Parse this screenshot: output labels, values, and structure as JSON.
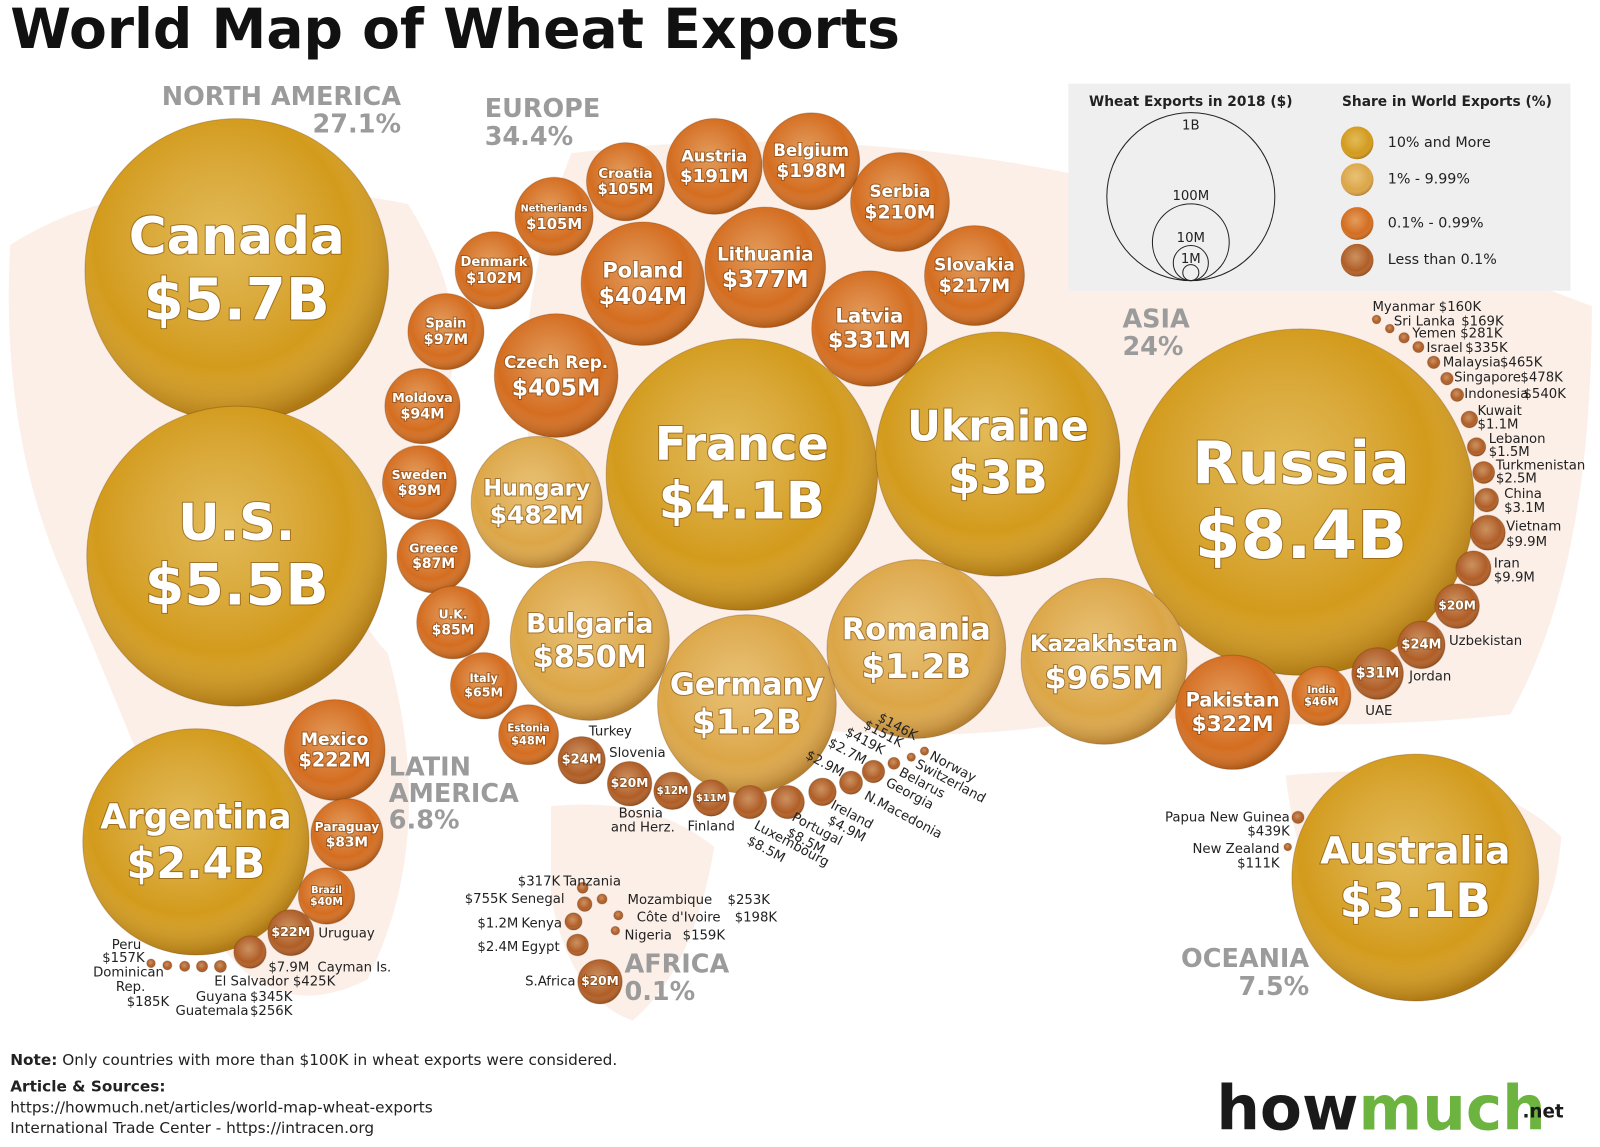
{
  "title": "World Map of Wheat Exports",
  "regions": [
    {
      "name": "NORTH AMERICA",
      "share": "27.1%"
    },
    {
      "name": "EUROPE",
      "share": "34.4%"
    },
    {
      "name": "ASIA",
      "share": "24%"
    },
    {
      "name": "LATIN AMERICA",
      "share": "6.8%"
    },
    {
      "name": "AFRICA",
      "share": "0.1%"
    },
    {
      "name": "OCEANIA",
      "share": "7.5%"
    }
  ],
  "countries": [
    {
      "name": "Canada",
      "value": 5700000000,
      "label": "$5.7B",
      "color": "#d39b1c"
    },
    {
      "name": "U.S.",
      "value": 5500000000,
      "label": "$5.5B",
      "color": "#d39b1c"
    },
    {
      "name": "Mexico",
      "value": 222000000,
      "label": "$222M",
      "color": "#d46d1f"
    },
    {
      "name": "Argentina",
      "value": 2400000000,
      "label": "$2.4B",
      "color": "#d39b1c"
    },
    {
      "name": "Paraguay",
      "value": 83000000,
      "label": "$83M",
      "color": "#d46d1f"
    },
    {
      "name": "Brazil",
      "value": 40000000,
      "label": "$40M",
      "color": "#d46d1f"
    },
    {
      "name": "Uruguay",
      "value": 22000000,
      "label": "$22M",
      "color": "#b05d25"
    },
    {
      "name": "Cayman Is.",
      "value": 7900000,
      "label": "$7.9M",
      "color": "#b05d25"
    },
    {
      "name": "El Salvador",
      "value": 425000,
      "label": "$425K",
      "color": "#b05d25"
    },
    {
      "name": "Guyana",
      "value": 345000,
      "label": "$345K",
      "color": "#b05d25"
    },
    {
      "name": "Guatemala",
      "value": 256000,
      "label": "$256K",
      "color": "#b05d25"
    },
    {
      "name": "Dominican Rep.",
      "value": 185000,
      "label": "$185K",
      "color": "#b05d25"
    },
    {
      "name": "Peru",
      "value": 157000,
      "label": "$157K",
      "color": "#b05d25"
    },
    {
      "name": "France",
      "value": 4100000000,
      "label": "$4.1B",
      "color": "#d39b1c"
    },
    {
      "name": "Germany",
      "value": 1200000000,
      "label": "$1.2B",
      "color": "#dca646"
    },
    {
      "name": "Romania",
      "value": 1200000000,
      "label": "$1.2B",
      "color": "#dca646"
    },
    {
      "name": "Bulgaria",
      "value": 850000000,
      "label": "$850M",
      "color": "#dca646"
    },
    {
      "name": "Hungary",
      "value": 482000000,
      "label": "$482M",
      "color": "#dca646"
    },
    {
      "name": "Czech Rep.",
      "value": 405000000,
      "label": "$405M",
      "color": "#d46d1f"
    },
    {
      "name": "Poland",
      "value": 404000000,
      "label": "$404M",
      "color": "#d46d1f"
    },
    {
      "name": "Lithuania",
      "value": 377000000,
      "label": "$377M",
      "color": "#d46d1f"
    },
    {
      "name": "Latvia",
      "value": 331000000,
      "label": "$331M",
      "color": "#d46d1f"
    },
    {
      "name": "Slovakia",
      "value": 217000000,
      "label": "$217M",
      "color": "#d46d1f"
    },
    {
      "name": "Serbia",
      "value": 210000000,
      "label": "$210M",
      "color": "#d46d1f"
    },
    {
      "name": "Belgium",
      "value": 198000000,
      "label": "$198M",
      "color": "#d46d1f"
    },
    {
      "name": "Austria",
      "value": 191000000,
      "label": "$191M",
      "color": "#d46d1f"
    },
    {
      "name": "Croatia",
      "value": 105000000,
      "label": "$105M",
      "color": "#d46d1f"
    },
    {
      "name": "Netherlands",
      "value": 105000000,
      "label": "$105M",
      "color": "#d46d1f"
    },
    {
      "name": "Denmark",
      "value": 102000000,
      "label": "$102M",
      "color": "#d46d1f"
    },
    {
      "name": "Spain",
      "value": 97000000,
      "label": "$97M",
      "color": "#d46d1f"
    },
    {
      "name": "Moldova",
      "value": 94000000,
      "label": "$94M",
      "color": "#d46d1f"
    },
    {
      "name": "Sweden",
      "value": 89000000,
      "label": "$89M",
      "color": "#d46d1f"
    },
    {
      "name": "Greece",
      "value": 87000000,
      "label": "$87M",
      "color": "#d46d1f"
    },
    {
      "name": "U.K.",
      "value": 85000000,
      "label": "$85M",
      "color": "#d46d1f"
    },
    {
      "name": "Italy",
      "value": 65000000,
      "label": "$65M",
      "color": "#d46d1f"
    },
    {
      "name": "Estonia",
      "value": 48000000,
      "label": "$48M",
      "color": "#d46d1f"
    },
    {
      "name": "Turkey",
      "value": 24000000,
      "label": "$24M",
      "color": "#b05d25"
    },
    {
      "name": "Slovenia",
      "value": 20000000,
      "label": "$20M",
      "color": "#b05d25"
    },
    {
      "name": "Bosnia and Herz.",
      "value": 12000000,
      "label": "$12M",
      "color": "#b05d25"
    },
    {
      "name": "Finland",
      "value": 11000000,
      "label": "$11M",
      "color": "#b05d25"
    },
    {
      "name": "Luxembourg",
      "value": 8500000,
      "label": "$8.5M",
      "color": "#b05d25"
    },
    {
      "name": "Portugal",
      "value": 8500000,
      "label": "$8.5M",
      "color": "#b05d25"
    },
    {
      "name": "Ireland",
      "value": 4900000,
      "label": "$4.9M",
      "color": "#b05d25"
    },
    {
      "name": "N.Macedonia",
      "value": 2900000,
      "label": "$2.9M",
      "color": "#b05d25"
    },
    {
      "name": "Georgia",
      "value": 2700000,
      "label": "$2.7M",
      "color": "#b05d25"
    },
    {
      "name": "Belarus",
      "value": 419000,
      "label": "$419K",
      "color": "#b05d25"
    },
    {
      "name": "Switzerland",
      "value": 151000,
      "label": "$151K",
      "color": "#b05d25"
    },
    {
      "name": "Norway",
      "value": 146000,
      "label": "$146K",
      "color": "#b05d25"
    },
    {
      "name": "Ukraine",
      "value": 3000000000,
      "label": "$3B",
      "color": "#d39b1c"
    },
    {
      "name": "Russia",
      "value": 8400000000,
      "label": "$8.4B",
      "color": "#d39b1c"
    },
    {
      "name": "Kazakhstan",
      "value": 965000000,
      "label": "$965M",
      "color": "#dca646"
    },
    {
      "name": "Pakistan",
      "value": 322000000,
      "label": "$322M",
      "color": "#d46d1f"
    },
    {
      "name": "India",
      "value": 46000000,
      "label": "$46M",
      "color": "#d46d1f"
    },
    {
      "name": "UAE",
      "value": 31000000,
      "label": "$31M",
      "color": "#b05d25"
    },
    {
      "name": "Jordan",
      "value": 24000000,
      "label": "$24M",
      "color": "#b05d25"
    },
    {
      "name": "Uzbekistan",
      "value": 20000000,
      "label": "$20M",
      "color": "#b05d25"
    },
    {
      "name": "Iran",
      "value": 9900000,
      "label": "$9.9M",
      "color": "#b05d25"
    },
    {
      "name": "Vietnam",
      "value": 9900000,
      "label": "$9.9M",
      "color": "#b05d25"
    },
    {
      "name": "China",
      "value": 3100000,
      "label": "$3.1M",
      "color": "#b05d25"
    },
    {
      "name": "Turkmenistan",
      "value": 2500000,
      "label": "$2.5M",
      "color": "#b05d25"
    },
    {
      "name": "Lebanon",
      "value": 1500000,
      "label": "$1.5M",
      "color": "#b05d25"
    },
    {
      "name": "Kuwait",
      "value": 1100000,
      "label": "$1.1M",
      "color": "#b05d25"
    },
    {
      "name": "Indonesia",
      "value": 540000,
      "label": "$540K",
      "color": "#b05d25"
    },
    {
      "name": "Singapore",
      "value": 478000,
      "label": "$478K",
      "color": "#b05d25"
    },
    {
      "name": "Malaysia",
      "value": 465000,
      "label": "$465K",
      "color": "#b05d25"
    },
    {
      "name": "Israel",
      "value": 335000,
      "label": "$335K",
      "color": "#b05d25"
    },
    {
      "name": "Yemen",
      "value": 281000,
      "label": "$281K",
      "color": "#b05d25"
    },
    {
      "name": "Sri Lanka",
      "value": 169000,
      "label": "$169K",
      "color": "#b05d25"
    },
    {
      "name": "Myanmar",
      "value": 160000,
      "label": "$160K",
      "color": "#b05d25"
    },
    {
      "name": "Australia",
      "value": 3100000000,
      "label": "$3.1B",
      "color": "#d39b1c"
    },
    {
      "name": "Papua New Guinea",
      "value": 439000,
      "label": "$439K",
      "color": "#b05d25"
    },
    {
      "name": "New Zealand",
      "value": 111000,
      "label": "$111K",
      "color": "#b05d25"
    },
    {
      "name": "S.Africa",
      "value": 20000000,
      "label": "$20M",
      "color": "#b05d25"
    },
    {
      "name": "Egypt",
      "value": 2400000,
      "label": "$2.4M",
      "color": "#b05d25"
    },
    {
      "name": "Kenya",
      "value": 1200000,
      "label": "$1.2M",
      "color": "#b05d25"
    },
    {
      "name": "Senegal",
      "value": 755000,
      "label": "$755K",
      "color": "#b05d25"
    },
    {
      "name": "Tanzania",
      "value": 317000,
      "label": "$317K",
      "color": "#b05d25"
    },
    {
      "name": "Mozambique",
      "value": 253000,
      "label": "$253K",
      "color": "#b05d25"
    },
    {
      "name": "Côte d'Ivoire",
      "value": 198000,
      "label": "$198K",
      "color": "#b05d25"
    },
    {
      "name": "Nigeria",
      "value": 159000,
      "label": "$159K",
      "color": "#b05d25"
    }
  ],
  "legend": {
    "size_title": "Wheat Exports in 2018 ($)",
    "sizes": [
      {
        "value": 1000000000,
        "label": "1B"
      },
      {
        "value": 100000000,
        "label": "100M"
      },
      {
        "value": 10000000,
        "label": "10M"
      },
      {
        "value": 1000000,
        "label": "1M"
      }
    ],
    "share_title": "Share in World Exports (%)",
    "shares": [
      {
        "label": "10% and More",
        "color": "#d39b1c"
      },
      {
        "label": "1% - 9.99%",
        "color": "#dca646"
      },
      {
        "label": "0.1% - 0.99%",
        "color": "#d46d1f"
      },
      {
        "label": "Less than 0.1%",
        "color": "#b05d25"
      }
    ]
  },
  "note": {
    "label": "Note:",
    "text": "Only countries with more than $100K in wheat exports were considered."
  },
  "sources": {
    "label": "Article & Sources:",
    "lines": [
      "https://howmuch.net/articles/world-map-wheat-exports",
      "International Trade Center - https://intracen.org"
    ]
  },
  "logo": {
    "how": "how",
    "much": "much",
    "tld": ".net"
  }
}
